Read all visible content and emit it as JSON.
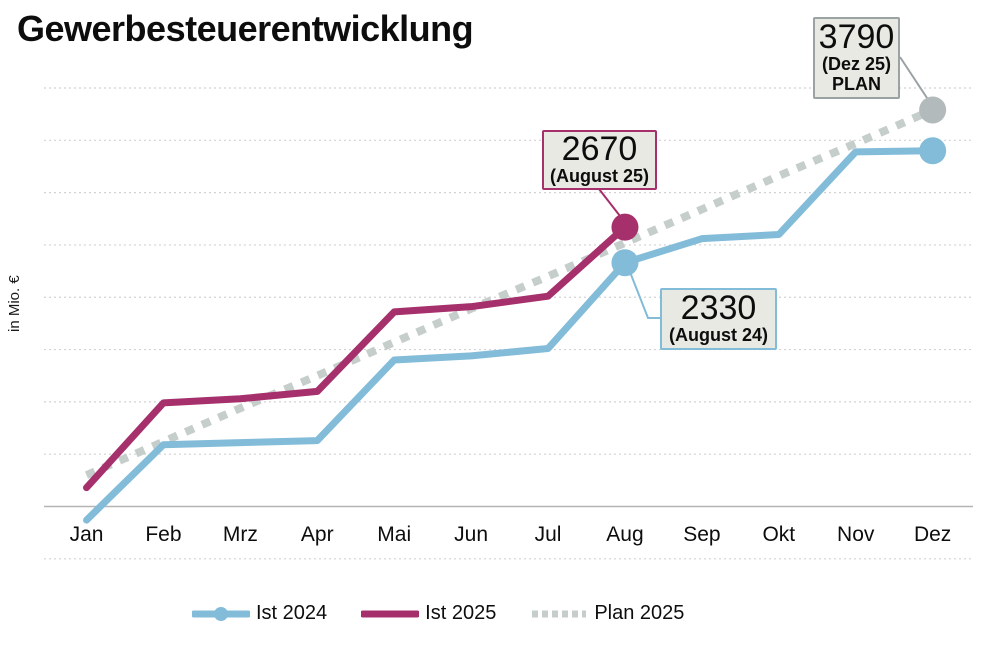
{
  "chart_data": {
    "type": "line",
    "title": "Gewerbesteuerentwicklung",
    "ylabel": "in Mio. €",
    "xlabel": "",
    "ylim": [
      -500,
      4000
    ],
    "grid_step": 500,
    "grid": "horizontal dotted lines, solid line at 0, no y tick labels",
    "legend_position": "bottom",
    "categories": [
      "Jan",
      "Feb",
      "Mrz",
      "Apr",
      "Mai",
      "Jun",
      "Jul",
      "Aug",
      "Sep",
      "Okt",
      "Nov",
      "Dez"
    ],
    "series": [
      {
        "name": "Ist 2024",
        "color": "#82bcd9",
        "style": "solid",
        "legend_marker": true,
        "values": [
          -130,
          590,
          610,
          630,
          1400,
          1440,
          1510,
          2330,
          2560,
          2600,
          3390,
          3400
        ],
        "markers": [
          {
            "month": "Aug",
            "value": 2330
          },
          {
            "month": "Dez",
            "value": 3400
          }
        ]
      },
      {
        "name": "Ist 2025",
        "color": "#a5306b",
        "style": "solid",
        "legend_marker": false,
        "values": [
          180,
          990,
          1030,
          1100,
          1860,
          1910,
          2010,
          2670
        ],
        "markers": [
          {
            "month": "Aug",
            "value": 2670
          }
        ]
      },
      {
        "name": "Plan 2025",
        "color": "#c5cecb",
        "marker_color": "#b2babc",
        "style": "dotted",
        "legend_marker": false,
        "values": [
          300,
          620,
          940,
          1250,
          1570,
          1890,
          2200,
          2520,
          2840,
          3160,
          3470,
          3790
        ],
        "markers": [
          {
            "month": "Dez",
            "value": 3790
          }
        ]
      }
    ],
    "annotations": [
      {
        "value": "3790",
        "line2": "(Dez 25)",
        "line3": "PLAN",
        "series": "Plan 2025",
        "month": "Dez",
        "accent": "#9aa2a4"
      },
      {
        "value": "2670",
        "line2": "(August 25)",
        "series": "Ist 2025",
        "month": "Aug",
        "accent": "#a5306b"
      },
      {
        "value": "2330",
        "line2": "(August 24)",
        "series": "Ist 2024",
        "month": "Aug",
        "accent": "#82bcd9"
      }
    ]
  }
}
